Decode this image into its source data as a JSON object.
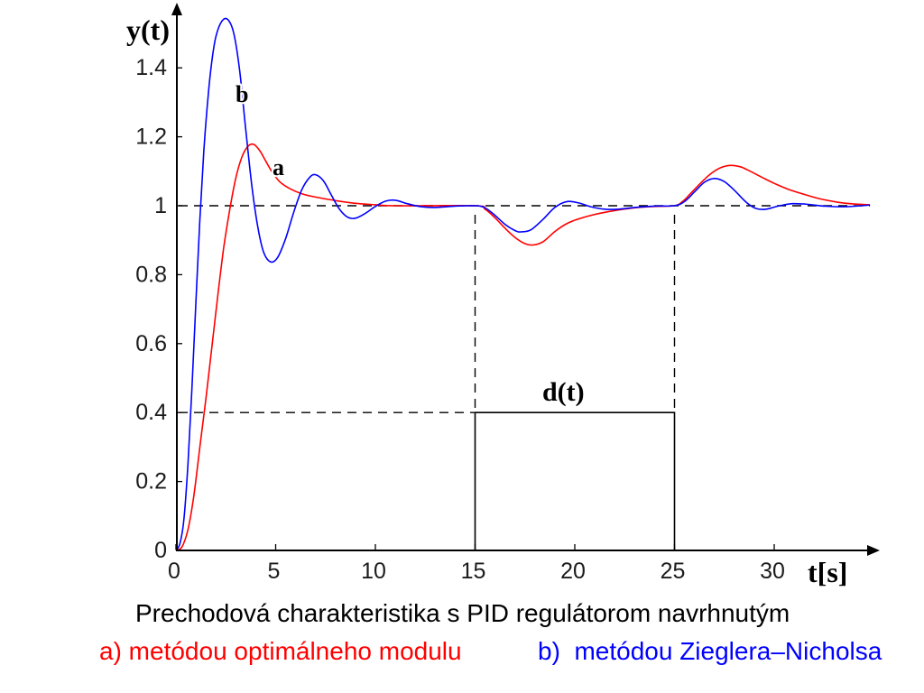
{
  "chart_data": {
    "type": "line",
    "title": "Prechodová charakteristika s PID regulátorom navrhnutým",
    "xlabel": "t[s]",
    "ylabel": "y(t)",
    "xlim": [
      0,
      35
    ],
    "ylim": [
      0,
      1.55
    ],
    "grid": false,
    "x_ticks": [
      0,
      5,
      10,
      15,
      20,
      25,
      30
    ],
    "x_tick_labels": [
      "0",
      "5",
      "10",
      "15",
      "20",
      "25",
      "30"
    ],
    "y_ticks": [
      0,
      0.2,
      0.4,
      0.6,
      0.8,
      1,
      1.2,
      1.4
    ],
    "y_tick_labels": [
      "0",
      "0.2",
      "0.4",
      "0.6",
      "0.8",
      "1",
      "1.2",
      "1.4"
    ],
    "setpoint": 1,
    "disturbance": {
      "label": "d(t)",
      "t_start": 15,
      "t_end": 25,
      "amplitude": 0.4
    },
    "series": [
      {
        "name": "a",
        "legend_text": "a) metódou optimálneho modulu",
        "color": "#ff0000",
        "points": [
          [
            0,
            0
          ],
          [
            0.3,
            0.01
          ],
          [
            0.6,
            0.06
          ],
          [
            0.9,
            0.16
          ],
          [
            1.2,
            0.3
          ],
          [
            1.5,
            0.44
          ],
          [
            1.8,
            0.59
          ],
          [
            2.1,
            0.74
          ],
          [
            2.4,
            0.88
          ],
          [
            2.7,
            0.99
          ],
          [
            3.0,
            1.08
          ],
          [
            3.3,
            1.14
          ],
          [
            3.6,
            1.172
          ],
          [
            3.9,
            1.178
          ],
          [
            4.2,
            1.16
          ],
          [
            4.5,
            1.13
          ],
          [
            4.8,
            1.1
          ],
          [
            5.2,
            1.07
          ],
          [
            5.7,
            1.05
          ],
          [
            6.3,
            1.035
          ],
          [
            7.0,
            1.025
          ],
          [
            8.0,
            1.015
          ],
          [
            9.0,
            1.007
          ],
          [
            10.0,
            1.003
          ],
          [
            11.0,
            1.0
          ],
          [
            15.0,
            1.0
          ],
          [
            15.5,
            0.99
          ],
          [
            16.0,
            0.965
          ],
          [
            16.5,
            0.935
          ],
          [
            17.0,
            0.908
          ],
          [
            17.5,
            0.89
          ],
          [
            17.9,
            0.886
          ],
          [
            18.4,
            0.895
          ],
          [
            19.0,
            0.925
          ],
          [
            19.5,
            0.945
          ],
          [
            20.0,
            0.958
          ],
          [
            21.0,
            0.975
          ],
          [
            22.0,
            0.986
          ],
          [
            23.0,
            0.994
          ],
          [
            24.0,
            0.998
          ],
          [
            25.0,
            1.0
          ],
          [
            25.4,
            1.012
          ],
          [
            25.8,
            1.035
          ],
          [
            26.3,
            1.065
          ],
          [
            26.8,
            1.092
          ],
          [
            27.3,
            1.11
          ],
          [
            27.8,
            1.117
          ],
          [
            28.3,
            1.113
          ],
          [
            28.8,
            1.1
          ],
          [
            29.4,
            1.082
          ],
          [
            30.0,
            1.065
          ],
          [
            30.7,
            1.048
          ],
          [
            31.5,
            1.033
          ],
          [
            32.3,
            1.02
          ],
          [
            33.2,
            1.01
          ],
          [
            34.0,
            1.005
          ],
          [
            34.8,
            1.003
          ]
        ]
      },
      {
        "name": "b",
        "legend_text": "b)  metódou Zieglera–Nicholsa",
        "color": "#0000ff",
        "points": [
          [
            0,
            0
          ],
          [
            0.2,
            0.02
          ],
          [
            0.4,
            0.09
          ],
          [
            0.6,
            0.25
          ],
          [
            0.8,
            0.47
          ],
          [
            1.0,
            0.72
          ],
          [
            1.2,
            0.96
          ],
          [
            1.4,
            1.16
          ],
          [
            1.6,
            1.31
          ],
          [
            1.8,
            1.42
          ],
          [
            2.0,
            1.49
          ],
          [
            2.3,
            1.535
          ],
          [
            2.6,
            1.54
          ],
          [
            2.9,
            1.5
          ],
          [
            3.2,
            1.39
          ],
          [
            3.5,
            1.22
          ],
          [
            3.8,
            1.06
          ],
          [
            4.1,
            0.94
          ],
          [
            4.4,
            0.865
          ],
          [
            4.75,
            0.837
          ],
          [
            5.1,
            0.85
          ],
          [
            5.5,
            0.905
          ],
          [
            5.9,
            0.98
          ],
          [
            6.3,
            1.045
          ],
          [
            6.7,
            1.082
          ],
          [
            7.0,
            1.09
          ],
          [
            7.4,
            1.072
          ],
          [
            7.8,
            1.03
          ],
          [
            8.2,
            0.99
          ],
          [
            8.6,
            0.967
          ],
          [
            9.0,
            0.964
          ],
          [
            9.5,
            0.978
          ],
          [
            10.0,
            0.998
          ],
          [
            10.5,
            1.013
          ],
          [
            11.0,
            1.016
          ],
          [
            11.6,
            1.006
          ],
          [
            12.3,
            0.997
          ],
          [
            13.0,
            0.995
          ],
          [
            14.0,
            0.999
          ],
          [
            15.0,
            1.0
          ],
          [
            15.5,
            0.994
          ],
          [
            16.0,
            0.972
          ],
          [
            16.5,
            0.946
          ],
          [
            17.0,
            0.928
          ],
          [
            17.3,
            0.924
          ],
          [
            17.8,
            0.93
          ],
          [
            18.4,
            0.96
          ],
          [
            19.0,
            0.995
          ],
          [
            19.6,
            1.012
          ],
          [
            20.2,
            1.008
          ],
          [
            20.8,
            0.997
          ],
          [
            21.5,
            0.99
          ],
          [
            22.2,
            0.99
          ],
          [
            23.0,
            0.995
          ],
          [
            24.0,
            0.999
          ],
          [
            25.0,
            1.0
          ],
          [
            25.5,
            1.012
          ],
          [
            26.0,
            1.04
          ],
          [
            26.5,
            1.068
          ],
          [
            27.0,
            1.079
          ],
          [
            27.5,
            1.07
          ],
          [
            28.0,
            1.045
          ],
          [
            28.6,
            1.01
          ],
          [
            29.1,
            0.992
          ],
          [
            29.6,
            0.99
          ],
          [
            30.2,
            0.999
          ],
          [
            30.9,
            1.006
          ],
          [
            31.7,
            1.004
          ],
          [
            32.5,
            0.999
          ],
          [
            33.5,
            0.997
          ],
          [
            34.8,
            1.002
          ]
        ]
      }
    ]
  }
}
